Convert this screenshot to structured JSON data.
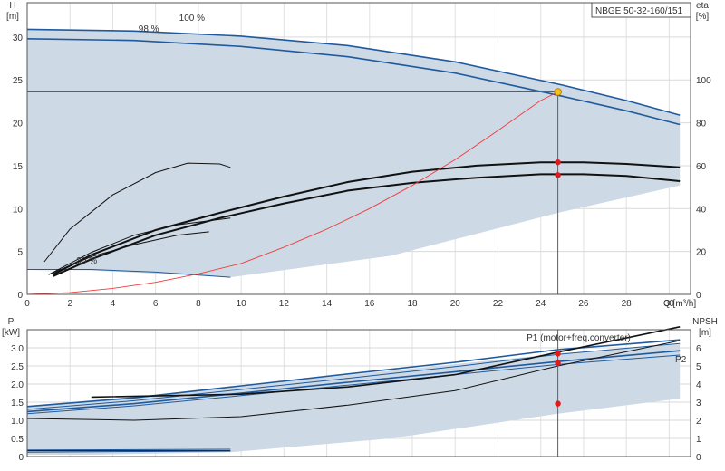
{
  "colors": {
    "region_fill": "#cdd9e5",
    "region_light": "#e9f2fb",
    "blue": "#1f5a9e",
    "black": "#111111",
    "red_point": "#e11b1b",
    "op_point": "#f3c417",
    "system_curve": "#f23a3a"
  },
  "chart_data": [
    {
      "type": "line",
      "model_label": "NBGE 50-32-160/151",
      "ylabel_left": "H\n[m]",
      "ylabel_right": "eta\n[%]",
      "xlabel": "Q [m³/h]",
      "xlim": [
        0,
        31
      ],
      "ylim": [
        0,
        34
      ],
      "ylim_right": [
        0,
        136
      ],
      "x_ticks": [
        "0",
        "2",
        "4",
        "6",
        "8",
        "10",
        "12",
        "14",
        "16",
        "18",
        "20",
        "22",
        "24",
        "26",
        "28",
        "30"
      ],
      "y_ticks": [
        "0",
        "5",
        "10",
        "15",
        "20",
        "25",
        "30"
      ],
      "y_ticks_right": [
        "0",
        "20",
        "40",
        "60",
        "80",
        "100"
      ],
      "speed_labels": [
        {
          "text": "100 %",
          "x": 7.1,
          "y": 31.9
        },
        {
          "text": "98 %",
          "x": 5.2,
          "y": 30.6
        },
        {
          "text": "30 %",
          "x": 2.3,
          "y": 3.6
        }
      ],
      "range_region_upper": [
        [
          0,
          30.9
        ],
        [
          5,
          30.7
        ],
        [
          10,
          30.1
        ],
        [
          15,
          29.0
        ],
        [
          20,
          27.1
        ],
        [
          25,
          24.4
        ],
        [
          28,
          22.6
        ],
        [
          30.5,
          20.9
        ]
      ],
      "range_region_lower": [
        [
          0,
          2.9
        ],
        [
          3,
          2.8
        ],
        [
          9.5,
          2.0
        ],
        [
          17,
          4.5
        ],
        [
          24.8,
          9.5
        ],
        [
          30.5,
          12.7
        ]
      ],
      "series": [
        {
          "role": "head-max",
          "color": "blue",
          "points": [
            [
              0,
              30.9
            ],
            [
              5,
              30.7
            ],
            [
              10,
              30.1
            ],
            [
              15,
              29.0
            ],
            [
              20,
              27.1
            ],
            [
              25,
              24.4
            ],
            [
              28,
              22.6
            ],
            [
              30.5,
              20.9
            ]
          ]
        },
        {
          "role": "head-98",
          "color": "blue",
          "points": [
            [
              0,
              29.8
            ],
            [
              5,
              29.6
            ],
            [
              10,
              28.9
            ],
            [
              15,
              27.7
            ],
            [
              20,
              25.8
            ],
            [
              25,
              23.1
            ],
            [
              28,
              21.4
            ],
            [
              30.5,
              19.8
            ]
          ]
        },
        {
          "role": "head-min",
          "color": "blue",
          "points": [
            [
              0,
              2.9
            ],
            [
              3,
              2.9
            ],
            [
              6,
              2.6
            ],
            [
              9.5,
              2.0
            ]
          ]
        },
        {
          "role": "efficiency-max",
          "color": "black",
          "points": [
            [
              1.2,
              2.3
            ],
            [
              3,
              4.6
            ],
            [
              6,
              7.5
            ],
            [
              9,
              9.5
            ],
            [
              12,
              11.4
            ],
            [
              15,
              13.1
            ],
            [
              18,
              14.3
            ],
            [
              21,
              15.0
            ],
            [
              24,
              15.4
            ],
            [
              26,
              15.4
            ],
            [
              28,
              15.2
            ],
            [
              30.5,
              14.8
            ]
          ]
        },
        {
          "role": "efficiency-98",
          "color": "black",
          "points": [
            [
              1.2,
              2.1
            ],
            [
              3,
              4.1
            ],
            [
              6,
              6.9
            ],
            [
              9,
              8.9
            ],
            [
              12,
              10.6
            ],
            [
              15,
              12.1
            ],
            [
              18,
              13.0
            ],
            [
              21,
              13.6
            ],
            [
              24,
              14.0
            ],
            [
              26,
              14.0
            ],
            [
              28,
              13.8
            ],
            [
              30.5,
              13.2
            ]
          ]
        },
        {
          "role": "efficiency-mid-a",
          "color": "black",
          "points": [
            [
              1,
              2.3
            ],
            [
              3,
              4.4
            ],
            [
              5,
              5.8
            ],
            [
              7,
              6.9
            ],
            [
              8.5,
              7.3
            ]
          ]
        },
        {
          "role": "efficiency-mid-b",
          "color": "black",
          "points": [
            [
              1,
              2.3
            ],
            [
              3,
              4.9
            ],
            [
              5,
              6.9
            ],
            [
              7,
              8.1
            ],
            [
              9.5,
              8.9
            ]
          ]
        },
        {
          "role": "efficiency-min",
          "color": "black",
          "points": [
            [
              0.8,
              3.8
            ],
            [
              2,
              7.6
            ],
            [
              4,
              11.6
            ],
            [
              6,
              14.2
            ],
            [
              7.5,
              15.3
            ],
            [
              9,
              15.2
            ],
            [
              9.5,
              14.8
            ]
          ]
        },
        {
          "role": "system-curve",
          "color": "system_curve",
          "points": [
            [
              0,
              0
            ],
            [
              2,
              0.2
            ],
            [
              4,
              0.7
            ],
            [
              6,
              1.4
            ],
            [
              8,
              2.4
            ],
            [
              10,
              3.6
            ],
            [
              12,
              5.5
            ],
            [
              14,
              7.6
            ],
            [
              16,
              10.0
            ],
            [
              18,
              12.7
            ],
            [
              20,
              15.7
            ],
            [
              22,
              19.1
            ],
            [
              24,
              22.6
            ],
            [
              24.8,
              23.6
            ]
          ]
        }
      ],
      "duty_point": {
        "x": 24.8,
        "y": 23.6
      },
      "markers": [
        {
          "x": 24.8,
          "y": 15.4
        },
        {
          "x": 24.8,
          "y": 13.9
        }
      ]
    },
    {
      "type": "line",
      "ylabel_left": "P\n[kW]",
      "ylabel_right": "NPSH\n[m]",
      "xlim": [
        0,
        31
      ],
      "ylim": [
        0,
        3.5
      ],
      "ylim_right": [
        0,
        7
      ],
      "y_ticks": [
        "0",
        "0.5",
        "1.0",
        "1.5",
        "2.0",
        "2.5",
        "3.0"
      ],
      "y_ticks_right": [
        "0",
        "1",
        "2",
        "3",
        "4",
        "5",
        "6"
      ],
      "series_labels": [
        {
          "text": "P1 (motor+freq.converter)",
          "x": 28.2,
          "y": 3.2,
          "color": "blue"
        },
        {
          "text": "P2",
          "x": 30.8,
          "y": 2.6,
          "color": "blue"
        }
      ],
      "range_region_upper": [
        [
          0,
          1.4
        ],
        [
          5,
          1.65
        ],
        [
          10,
          1.95
        ],
        [
          15,
          2.25
        ],
        [
          20,
          2.55
        ],
        [
          25,
          2.85
        ],
        [
          30.5,
          3.1
        ]
      ],
      "range_region_lower": [
        [
          0,
          0.05
        ],
        [
          3,
          0.05
        ],
        [
          9.5,
          0.12
        ],
        [
          17,
          0.5
        ],
        [
          24.8,
          1.18
        ],
        [
          30.5,
          1.6
        ]
      ],
      "series": [
        {
          "role": "P1-max",
          "color": "blue",
          "points": [
            [
              0,
              1.38
            ],
            [
              5,
              1.62
            ],
            [
              10,
              1.95
            ],
            [
              15,
              2.28
            ],
            [
              20,
              2.6
            ],
            [
              24.8,
              2.95
            ],
            [
              30.5,
              3.22
            ]
          ]
        },
        {
          "role": "P1-98",
          "color": "blue",
          "points": [
            [
              0,
              1.3
            ],
            [
              5,
              1.54
            ],
            [
              10,
              1.85
            ],
            [
              15,
              2.16
            ],
            [
              20,
              2.48
            ],
            [
              24.8,
              2.82
            ],
            [
              30.5,
              3.12
            ]
          ]
        },
        {
          "role": "P2-max",
          "color": "blue",
          "points": [
            [
              0,
              1.24
            ],
            [
              5,
              1.46
            ],
            [
              10,
              1.75
            ],
            [
              15,
              2.05
            ],
            [
              20,
              2.34
            ],
            [
              24.8,
              2.62
            ],
            [
              30.5,
              2.92
            ]
          ]
        },
        {
          "role": "P2-98",
          "color": "blue",
          "points": [
            [
              0,
              1.18
            ],
            [
              5,
              1.4
            ],
            [
              10,
              1.68
            ],
            [
              15,
              1.97
            ],
            [
              20,
              2.26
            ],
            [
              24.8,
              2.54
            ],
            [
              30.5,
              2.8
            ]
          ]
        },
        {
          "role": "P1-min",
          "color": "blue",
          "points": [
            [
              0,
              0.18
            ],
            [
              9.5,
              0.2
            ]
          ]
        },
        {
          "role": "P2-min",
          "color": "blue",
          "points": [
            [
              0,
              0.12
            ],
            [
              9.5,
              0.15
            ]
          ]
        },
        {
          "role": "NPSH-98",
          "color": "black",
          "points": [
            [
              3,
              1.64
            ],
            [
              10,
              1.72
            ],
            [
              15,
              1.92
            ],
            [
              20,
              2.26
            ],
            [
              24.8,
              2.88
            ],
            [
              30.5,
              3.58
            ]
          ],
          "axis": "right"
        },
        {
          "role": "NPSH-min",
          "color": "black",
          "points": [
            [
              0,
              1.05
            ],
            [
              5,
              1.0
            ],
            [
              10,
              1.1
            ],
            [
              15,
              1.42
            ],
            [
              20,
              1.82
            ],
            [
              24.8,
              2.5
            ],
            [
              30.5,
              3.2
            ]
          ],
          "axis": "right"
        },
        {
          "role": "NPSH-lowest",
          "color": "black",
          "points": [
            [
              0,
              0.16
            ],
            [
              9.5,
              0.16
            ]
          ],
          "axis": "right"
        }
      ],
      "markers": [
        {
          "x": 24.8,
          "y": 2.84
        },
        {
          "x": 24.8,
          "y": 2.58
        },
        {
          "x": 24.8,
          "y": 1.46
        }
      ]
    }
  ]
}
